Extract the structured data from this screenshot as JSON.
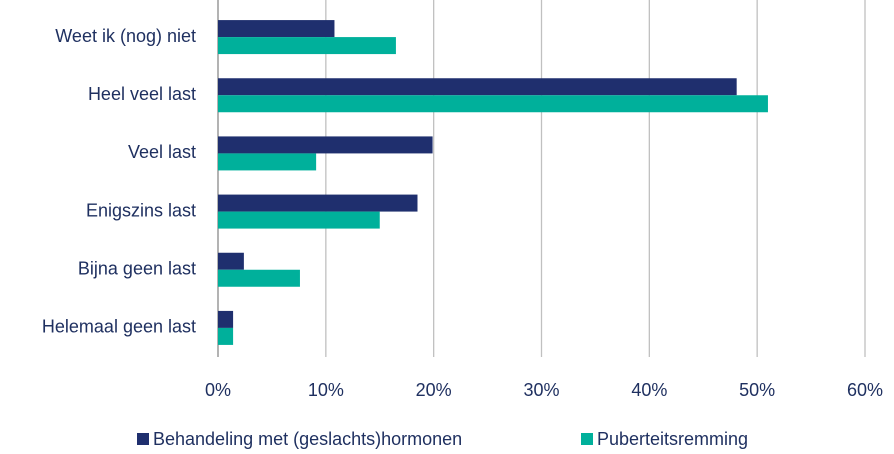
{
  "chart_data": {
    "type": "hbar",
    "categories": [
      "Weet ik (nog) niet",
      "Heel veel last",
      "Veel last",
      "Enigszins last",
      "Bijna geen last",
      "Helemaal geen last"
    ],
    "series": [
      {
        "name": "Behandeling met (geslachts)hormonen",
        "color": "#1f2f6e",
        "values": [
          10.8,
          48.1,
          19.9,
          18.5,
          2.4,
          1.4
        ]
      },
      {
        "name": "Puberteitsremming",
        "color": "#00b09b",
        "values": [
          16.5,
          51.0,
          9.1,
          15.0,
          7.6,
          1.4
        ]
      }
    ],
    "xlim": [
      0,
      60
    ],
    "xticks": [
      {
        "value": 0,
        "label": "0%"
      },
      {
        "value": 10,
        "label": "10%"
      },
      {
        "value": 20,
        "label": "20%"
      },
      {
        "value": 30,
        "label": "30%"
      },
      {
        "value": 40,
        "label": "40%"
      },
      {
        "value": 50,
        "label": "50%"
      },
      {
        "value": 60,
        "label": "60%"
      }
    ],
    "grid": true,
    "legend": "bottom"
  }
}
